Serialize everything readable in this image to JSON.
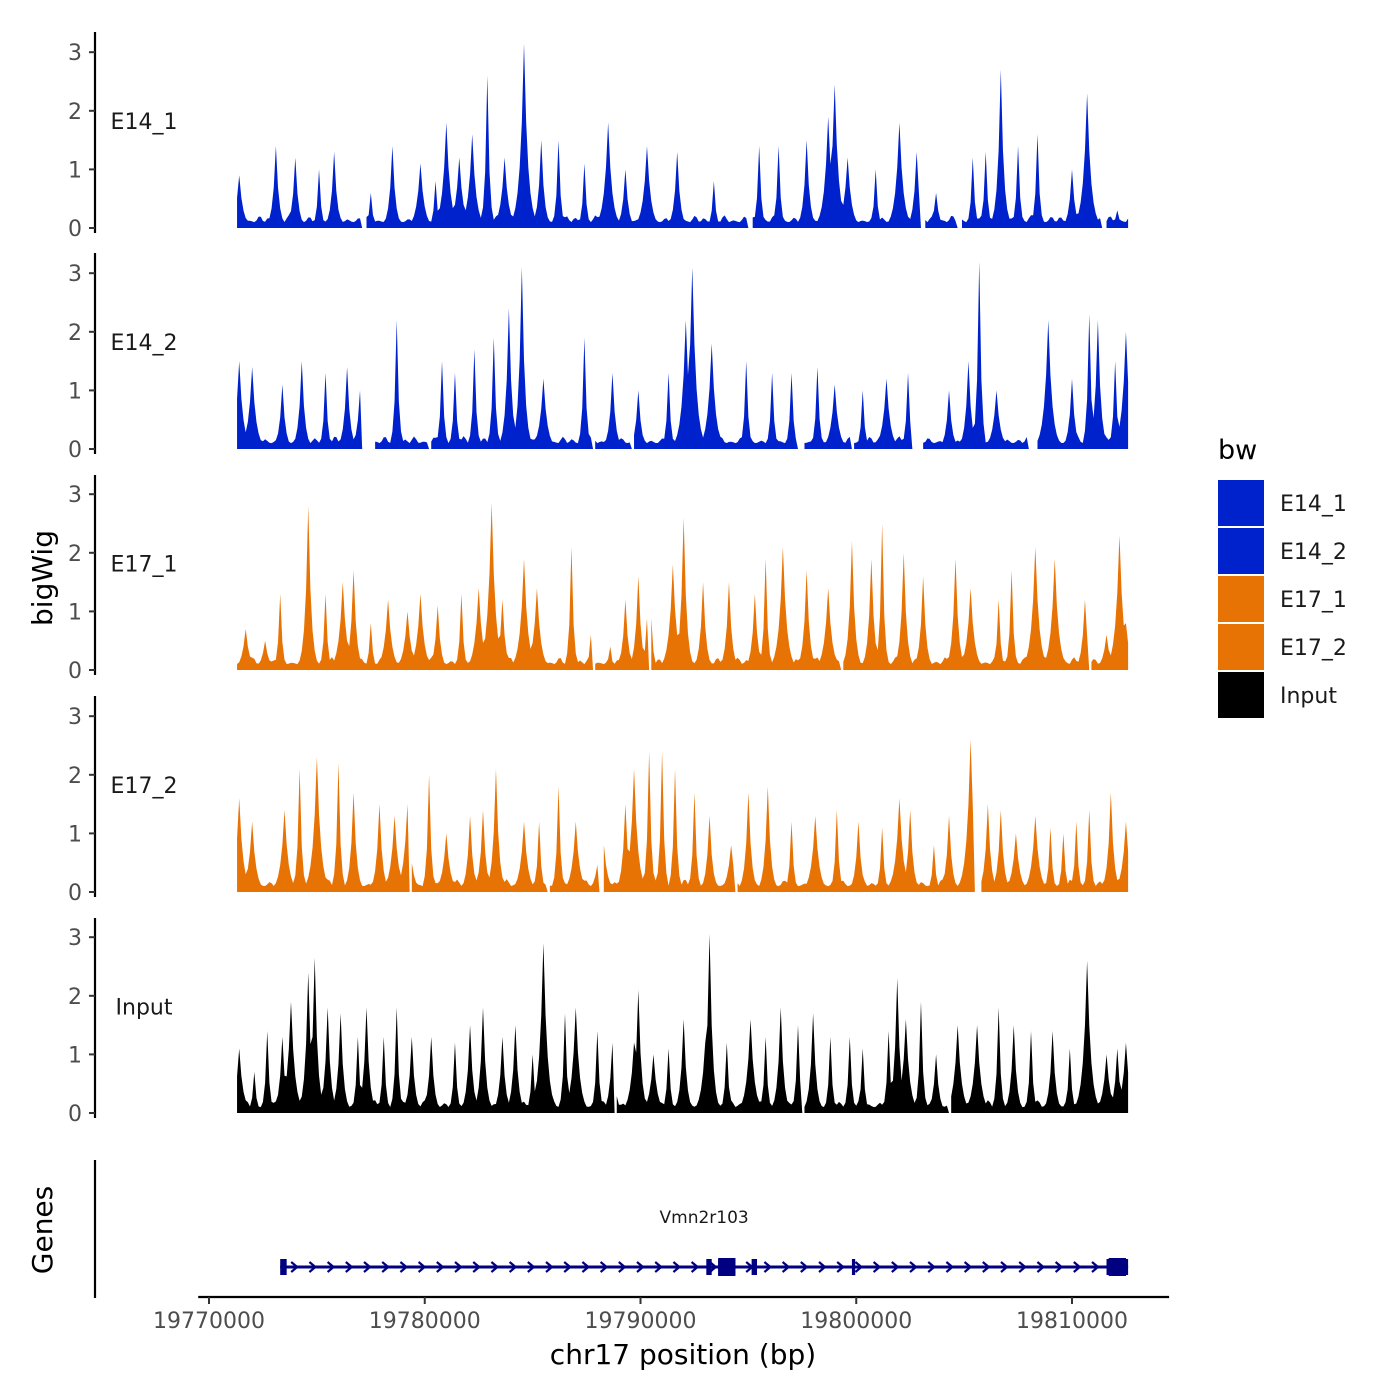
{
  "chart_data": {
    "type": "area",
    "xlabel": "chr17 position (bp)",
    "ylabel": "bigWig",
    "xlim": [
      19769500,
      19814500
    ],
    "x_ticks": [
      19770000,
      19780000,
      19790000,
      19800000,
      19810000
    ],
    "x_tick_labels": [
      "19770000",
      "19780000",
      "19790000",
      "19800000",
      "19810000"
    ],
    "ylim": [
      0,
      3.3
    ],
    "y_ticks": [
      0,
      1,
      2,
      3
    ],
    "y_tick_labels": [
      "0",
      "1",
      "2",
      "3"
    ],
    "data_range": [
      19771300,
      19812600
    ],
    "bin_size_bp": 100,
    "legend": {
      "title": "bw",
      "position": "right",
      "entries": [
        {
          "label": "E14_1",
          "color": "#0022cc"
        },
        {
          "label": "E14_2",
          "color": "#0022cc"
        },
        {
          "label": "E17_1",
          "color": "#e87305"
        },
        {
          "label": "E17_2",
          "color": "#e87305"
        },
        {
          "label": "Input",
          "color": "#000000"
        }
      ]
    },
    "series": [
      {
        "name": "E14_1",
        "color": "#0022cc",
        "peaks": [
          [
            19771400,
            0.9
          ],
          [
            19773100,
            1.4
          ],
          [
            19774000,
            1.2
          ],
          [
            19775100,
            1.0
          ],
          [
            19775800,
            1.3
          ],
          [
            19777500,
            0.6
          ],
          [
            19778500,
            1.4
          ],
          [
            19779800,
            1.1
          ],
          [
            19780500,
            0.8
          ],
          [
            19781000,
            1.8
          ],
          [
            19781600,
            1.2
          ],
          [
            19782200,
            1.6
          ],
          [
            19782900,
            2.6
          ],
          [
            19783700,
            1.2
          ],
          [
            19784600,
            3.15
          ],
          [
            19785400,
            1.5
          ],
          [
            19786200,
            1.5
          ],
          [
            19787400,
            1.1
          ],
          [
            19788500,
            1.8
          ],
          [
            19789300,
            1.0
          ],
          [
            19790300,
            1.4
          ],
          [
            19791700,
            1.3
          ],
          [
            19793400,
            0.8
          ],
          [
            19795500,
            1.4
          ],
          [
            19796400,
            1.4
          ],
          [
            19797700,
            1.5
          ],
          [
            19798700,
            1.9
          ],
          [
            19799000,
            2.45
          ],
          [
            19799600,
            1.2
          ],
          [
            19800900,
            1.0
          ],
          [
            19802000,
            1.8
          ],
          [
            19802800,
            1.3
          ],
          [
            19803700,
            0.6
          ],
          [
            19805400,
            1.2
          ],
          [
            19806000,
            1.3
          ],
          [
            19806700,
            2.7
          ],
          [
            19807500,
            1.4
          ],
          [
            19808400,
            1.6
          ],
          [
            19810000,
            1.0
          ],
          [
            19810700,
            2.3
          ],
          [
            19812100,
            0.3
          ]
        ],
        "gaps": [
          [
            19777050,
            19777250
          ],
          [
            19794950,
            19795150
          ],
          [
            19802950,
            19803150
          ],
          [
            19804650,
            19804850
          ],
          [
            19811350,
            19811550
          ]
        ]
      },
      {
        "name": "E14_2",
        "color": "#0022cc",
        "peaks": [
          [
            19771400,
            1.5
          ],
          [
            19772000,
            1.4
          ],
          [
            19773400,
            1.1
          ],
          [
            19774300,
            1.5
          ],
          [
            19775400,
            1.3
          ],
          [
            19776400,
            1.4
          ],
          [
            19777000,
            1.0
          ],
          [
            19778700,
            2.2
          ],
          [
            19780800,
            1.5
          ],
          [
            19781400,
            1.3
          ],
          [
            19782300,
            1.7
          ],
          [
            19783200,
            1.9
          ],
          [
            19783900,
            2.4
          ],
          [
            19784500,
            3.1
          ],
          [
            19785500,
            1.2
          ],
          [
            19787400,
            1.9
          ],
          [
            19788700,
            1.3
          ],
          [
            19789900,
            1.0
          ],
          [
            19791300,
            1.3
          ],
          [
            19792100,
            2.2
          ],
          [
            19792400,
            3.1
          ],
          [
            19793300,
            1.8
          ],
          [
            19794900,
            1.5
          ],
          [
            19796100,
            1.3
          ],
          [
            19797000,
            1.3
          ],
          [
            19798200,
            1.4
          ],
          [
            19799000,
            1.1
          ],
          [
            19800300,
            1.0
          ],
          [
            19801400,
            1.2
          ],
          [
            19802400,
            1.3
          ],
          [
            19804300,
            1.0
          ],
          [
            19805200,
            1.5
          ],
          [
            19805700,
            3.2
          ],
          [
            19806500,
            1.0
          ],
          [
            19808900,
            2.2
          ],
          [
            19810000,
            1.2
          ],
          [
            19810800,
            2.3
          ],
          [
            19811200,
            2.2
          ],
          [
            19812000,
            1.5
          ],
          [
            19812500,
            2.0
          ]
        ],
        "gaps": [
          [
            19777050,
            19777650
          ],
          [
            19780150,
            19780250
          ],
          [
            19787750,
            19787850
          ],
          [
            19789550,
            19789650
          ],
          [
            19797250,
            19797550
          ],
          [
            19799750,
            19799850
          ],
          [
            19802550,
            19803050
          ],
          [
            19807950,
            19808350
          ]
        ]
      },
      {
        "name": "E17_1",
        "color": "#e87305",
        "peaks": [
          [
            19771700,
            0.7
          ],
          [
            19772600,
            0.5
          ],
          [
            19773300,
            1.3
          ],
          [
            19774600,
            2.8
          ],
          [
            19775400,
            1.3
          ],
          [
            19776200,
            1.5
          ],
          [
            19776700,
            1.7
          ],
          [
            19777500,
            0.8
          ],
          [
            19778300,
            1.2
          ],
          [
            19779200,
            1.0
          ],
          [
            19779800,
            1.3
          ],
          [
            19780600,
            1.1
          ],
          [
            19781700,
            1.3
          ],
          [
            19782500,
            1.4
          ],
          [
            19783100,
            2.85
          ],
          [
            19783600,
            1.2
          ],
          [
            19784600,
            1.9
          ],
          [
            19785200,
            1.4
          ],
          [
            19786800,
            2.1
          ],
          [
            19787700,
            0.6
          ],
          [
            19788600,
            0.4
          ],
          [
            19789300,
            1.2
          ],
          [
            19789900,
            1.6
          ],
          [
            19790400,
            2.4
          ],
          [
            19791500,
            1.8
          ],
          [
            19792000,
            2.6
          ],
          [
            19792900,
            1.5
          ],
          [
            19794100,
            1.5
          ],
          [
            19795300,
            1.3
          ],
          [
            19795800,
            1.9
          ],
          [
            19796600,
            2.1
          ],
          [
            19797700,
            1.7
          ],
          [
            19798700,
            1.4
          ],
          [
            19799800,
            2.2
          ],
          [
            19800700,
            1.9
          ],
          [
            19801200,
            2.5
          ],
          [
            19802200,
            2.0
          ],
          [
            19803100,
            1.6
          ],
          [
            19804600,
            1.9
          ],
          [
            19805300,
            1.4
          ],
          [
            19806600,
            1.2
          ],
          [
            19807200,
            1.7
          ],
          [
            19808300,
            2.1
          ],
          [
            19809200,
            1.9
          ],
          [
            19810600,
            1.2
          ],
          [
            19811600,
            0.6
          ],
          [
            19812200,
            2.3
          ],
          [
            19812500,
            0.8
          ]
        ],
        "gaps": [
          [
            19787750,
            19787850
          ],
          [
            19790350,
            19790450
          ],
          [
            19799250,
            19799350
          ],
          [
            19810750,
            19810850
          ]
        ]
      },
      {
        "name": "E17_2",
        "color": "#e87305",
        "peaks": [
          [
            19771400,
            1.6
          ],
          [
            19772000,
            1.2
          ],
          [
            19773500,
            1.4
          ],
          [
            19774200,
            2.1
          ],
          [
            19775000,
            2.3
          ],
          [
            19776000,
            2.2
          ],
          [
            19776700,
            1.7
          ],
          [
            19777900,
            1.5
          ],
          [
            19778600,
            1.3
          ],
          [
            19779200,
            1.5
          ],
          [
            19780200,
            2.0
          ],
          [
            19781000,
            1.0
          ],
          [
            19782100,
            1.3
          ],
          [
            19782700,
            1.4
          ],
          [
            19783300,
            2.1
          ],
          [
            19784600,
            1.2
          ],
          [
            19785300,
            1.2
          ],
          [
            19786200,
            1.8
          ],
          [
            19787000,
            1.2
          ],
          [
            19788200,
            1.4
          ],
          [
            19789300,
            1.5
          ],
          [
            19789700,
            2.1
          ],
          [
            19790400,
            2.4
          ],
          [
            19791000,
            2.4
          ],
          [
            19791600,
            2.1
          ],
          [
            19792500,
            1.7
          ],
          [
            19793200,
            1.3
          ],
          [
            19794200,
            0.8
          ],
          [
            19795000,
            1.7
          ],
          [
            19795900,
            1.8
          ],
          [
            19797000,
            1.2
          ],
          [
            19798100,
            1.3
          ],
          [
            19799100,
            1.4
          ],
          [
            19800100,
            1.2
          ],
          [
            19801200,
            1.1
          ],
          [
            19802000,
            1.6
          ],
          [
            19802500,
            1.4
          ],
          [
            19803600,
            0.8
          ],
          [
            19804300,
            1.3
          ],
          [
            19805300,
            2.6
          ],
          [
            19806100,
            1.5
          ],
          [
            19806700,
            1.4
          ],
          [
            19807400,
            1.0
          ],
          [
            19808300,
            1.3
          ],
          [
            19809000,
            1.1
          ],
          [
            19809600,
            1.0
          ],
          [
            19810200,
            1.2
          ],
          [
            19810800,
            1.4
          ],
          [
            19811800,
            1.7
          ],
          [
            19812500,
            1.2
          ]
        ],
        "gaps": [
          [
            19779250,
            19779350
          ],
          [
            19785650,
            19785750
          ],
          [
            19788050,
            19788250
          ],
          [
            19794350,
            19794450
          ],
          [
            19805450,
            19805750
          ]
        ]
      },
      {
        "name": "Input",
        "color": "#000000",
        "peaks": [
          [
            19771400,
            1.1
          ],
          [
            19772100,
            0.7
          ],
          [
            19772700,
            1.4
          ],
          [
            19773400,
            1.3
          ],
          [
            19773800,
            1.9
          ],
          [
            19774600,
            2.4
          ],
          [
            19774900,
            2.65
          ],
          [
            19775500,
            1.8
          ],
          [
            19776100,
            1.7
          ],
          [
            19776900,
            1.3
          ],
          [
            19777300,
            1.8
          ],
          [
            19778100,
            1.3
          ],
          [
            19778700,
            1.8
          ],
          [
            19779400,
            1.3
          ],
          [
            19780300,
            1.3
          ],
          [
            19781400,
            1.2
          ],
          [
            19782100,
            1.5
          ],
          [
            19782700,
            1.8
          ],
          [
            19783600,
            1.3
          ],
          [
            19784200,
            1.5
          ],
          [
            19785000,
            1.0
          ],
          [
            19785500,
            2.9
          ],
          [
            19786500,
            1.7
          ],
          [
            19787000,
            1.8
          ],
          [
            19788000,
            1.4
          ],
          [
            19788700,
            1.2
          ],
          [
            19789700,
            1.2
          ],
          [
            19789900,
            2.1
          ],
          [
            19790600,
            1.0
          ],
          [
            19791300,
            1.1
          ],
          [
            19792000,
            1.6
          ],
          [
            19793000,
            1.2
          ],
          [
            19793200,
            3.05
          ],
          [
            19794000,
            1.2
          ],
          [
            19795100,
            1.6
          ],
          [
            19795800,
            1.3
          ],
          [
            19796500,
            1.8
          ],
          [
            19797300,
            1.5
          ],
          [
            19798000,
            1.7
          ],
          [
            19798800,
            1.3
          ],
          [
            19799700,
            1.3
          ],
          [
            19800300,
            1.1
          ],
          [
            19801500,
            1.4
          ],
          [
            19801900,
            2.3
          ],
          [
            19802300,
            1.6
          ],
          [
            19803000,
            1.9
          ],
          [
            19803700,
            1.0
          ],
          [
            19804700,
            1.5
          ],
          [
            19805600,
            1.5
          ],
          [
            19806600,
            1.8
          ],
          [
            19807300,
            1.5
          ],
          [
            19808100,
            1.4
          ],
          [
            19809100,
            1.4
          ],
          [
            19809900,
            1.1
          ],
          [
            19810700,
            2.6
          ],
          [
            19811600,
            1.0
          ],
          [
            19812100,
            1.1
          ],
          [
            19812500,
            1.2
          ]
        ],
        "gaps": [
          [
            19788750,
            19788850
          ],
          [
            19797450,
            19797550
          ],
          [
            19804250,
            19804350
          ]
        ]
      }
    ],
    "genes": {
      "track_label": "Genes",
      "items": [
        {
          "name": "Vmn2r103",
          "start": 19773300,
          "end": 19812600,
          "strand": "+",
          "color": "#000080",
          "exons": [
            [
              19773300,
              19773600
            ],
            [
              19793050,
              19793300
            ],
            [
              19793600,
              19794400
            ],
            [
              19795150,
              19795400
            ],
            [
              19799800,
              19799950
            ],
            [
              19811600,
              19812600
            ]
          ],
          "thick_exons": [
            [
              19793600,
              19794400
            ],
            [
              19811700,
              19812500
            ]
          ]
        }
      ]
    }
  }
}
